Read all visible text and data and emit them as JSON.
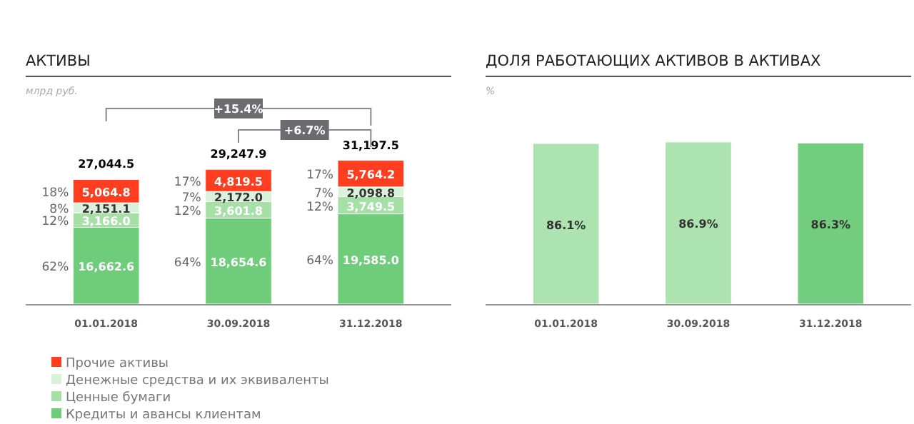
{
  "chart_data": [
    {
      "type": "bar",
      "title": "АКТИВЫ",
      "ylabel": "млрд руб.",
      "stacked": true,
      "categories": [
        "01.01.2018",
        "30.09.2018",
        "31.12.2018"
      ],
      "tick_labels": "x",
      "legend": "bottom left",
      "series": [
        {
          "name": "Кредиты и авансы клиентам",
          "color": "#6fcc7a",
          "values": [
            16662.6,
            18654.6,
            19585.0
          ],
          "value_labels": [
            "16,662.6",
            "18,654.6",
            "19,585.0"
          ]
        },
        {
          "name": "Ценные бумаги",
          "color": "#a6e0a6",
          "values": [
            3166.0,
            3601.8,
            3749.5
          ],
          "value_labels": [
            "3,166.0",
            "3,601.8",
            "3,749.5"
          ]
        },
        {
          "name": "Денежные средства и их эквиваленты",
          "color": "#d9f2d9",
          "values": [
            2151.1,
            2172.0,
            2098.8
          ],
          "value_labels": [
            "2,151.1",
            "2,172.0",
            "2,098.8"
          ]
        },
        {
          "name": "Прочие активы",
          "color": "#ff3d1f",
          "values": [
            5064.8,
            4819.5,
            5764.2
          ],
          "value_labels": [
            "5,064.8",
            "4,819.5",
            "5,764.2"
          ]
        }
      ],
      "totals": [
        "27,044.5",
        "29,247.9",
        "31,197.5"
      ],
      "annotations": [
        "+15.4%",
        "+6.7%",
        "62%",
        "12%",
        "8%",
        "18%",
        "64%",
        "12%",
        "7%",
        "17%",
        "64%",
        "12%",
        "7%",
        "17%"
      ]
    },
    {
      "type": "bar",
      "title": "ДОЛЯ РАБОТАЮЩИХ АКТИВОВ В АКТИВАХ",
      "ylabel": "%",
      "categories": [
        "01.01.2018",
        "30.09.2018",
        "31.12.2018"
      ],
      "tick_labels": "x",
      "values": [
        86.1,
        86.9,
        86.3
      ],
      "colors": [
        "#ade3b0",
        "#ade3b0",
        "#72cd7e"
      ],
      "value_labels": [
        "86.1%",
        "86.9%",
        "86.3%"
      ]
    }
  ]
}
